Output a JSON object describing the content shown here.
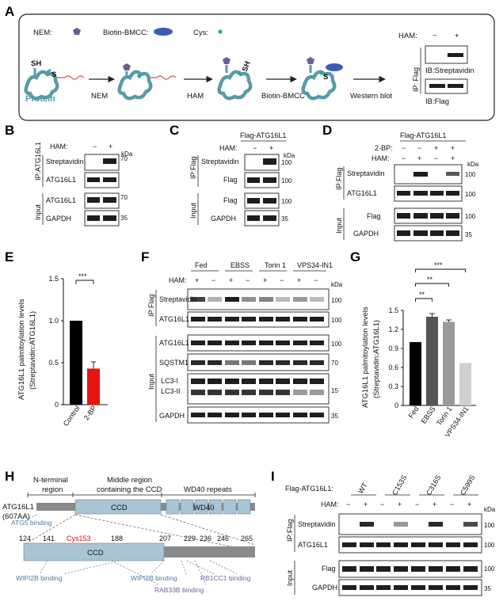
{
  "panels": {
    "A": "A",
    "B": "B",
    "C": "C",
    "D": "D",
    "E": "E",
    "F": "F",
    "G": "G",
    "H": "H",
    "I": "I"
  },
  "colors": {
    "protein": "#5a9aa6",
    "nem": "#6b5e96",
    "bmcc": "#3a5bb8",
    "cys": "#2aa89a",
    "bar_black": "#000000",
    "bar_red": "#e8140f",
    "g_bars": [
      "#000000",
      "#555555",
      "#9a9a9a",
      "#d0d0d0"
    ],
    "domain": "#a9c4d2",
    "cys153": "#d11010",
    "blue_text": "#4a7ca0",
    "purple_text": "#7060a0"
  },
  "a": {
    "legend_nem": "NEM:",
    "legend_bmcc": "Biotin-BMCC:",
    "legend_cys": "Cys:",
    "sh": "SH",
    "s": "S",
    "protein": "Protein",
    "sh2": "SH",
    "steps": [
      "NEM",
      "HAM",
      "Biotin-BMCC",
      "Western blot"
    ],
    "ham": "HAM:",
    "minus": "−",
    "plus": "+",
    "ip": "IP: Flag",
    "ib1": "IB:Streptavidin",
    "ib2": "IB:Flag"
  },
  "common": {
    "ham": "HAM:",
    "minus": "−",
    "plus": "+",
    "kda": "kDa",
    "streptavidin": "Streptavidin",
    "atg16l1": "ATG16L1",
    "flag": "Flag",
    "gapdh": "GAPDH",
    "input": "Input",
    "bp": "2-BP:",
    "ipflag": "IP:Flag",
    "ipatg": "IP:ATG16L1",
    "flag_atg": "Flag-ATG16L1"
  },
  "markers": {
    "m70": "70",
    "m35": "35",
    "m100": "100",
    "m15": "15"
  },
  "e": {
    "ylabel1": "ATG16L1 palmitoylation levels",
    "ylabel2": "(Streptavidin:ATG16L1)",
    "sig": "***",
    "chart_data": {
      "type": "bar",
      "categories": [
        "Control",
        "2-BP"
      ],
      "values": [
        1.0,
        0.43
      ],
      "errors": [
        0,
        0.08
      ],
      "ylim": [
        0,
        1.5
      ],
      "yticks": [
        "0",
        "0.5",
        "1.0",
        "1.5"
      ],
      "ylabel": "ATG16L1 palmitoylation levels (Streptavidin:ATG16L1)"
    }
  },
  "f": {
    "groups": [
      "Fed",
      "EBSS",
      "Torin 1",
      "VPS34-IN1"
    ],
    "sqstm1": "SQSTM1",
    "lc3i": "LC3-I",
    "lc3ii": "LC3-II"
  },
  "g": {
    "ylabel1": "ATG16L1 palmitoylation levels",
    "ylabel2": "(Streptavidin:ATG16L1)",
    "sig": [
      "**",
      "**",
      "***"
    ],
    "chart_data": {
      "type": "bar",
      "categories": [
        "Fed",
        "EBSS",
        "Torin 1",
        "VPS34-IN1"
      ],
      "values": [
        1.0,
        1.4,
        1.32,
        0.67
      ],
      "errors": [
        0,
        0.05,
        0.03,
        0
      ],
      "ylim": [
        0,
        1.5
      ],
      "yticks": [
        "0",
        "0.3",
        "0.6",
        "0.9",
        "1.2",
        "1.5"
      ],
      "ylabel": "ATG16L1 palmitoylation levels (Streptavidin:ATG16L1)"
    }
  },
  "h": {
    "nterm1": "N-terminal",
    "nterm2": "region",
    "mid1": "Middle region",
    "mid2": "containing the CCD",
    "wd40r": "WD40 repeats",
    "atg": "ATG16L1",
    "aa": "(607AA)",
    "ccd": "CCD",
    "wd40": "WD40",
    "atg5": "ATG5 binding",
    "positions": [
      "124",
      "141",
      "Cys153",
      "188",
      "207",
      "229",
      "236",
      "246",
      "265"
    ],
    "wipi1": "WIPI2B binding",
    "wipi2": "WIPI2B binding",
    "rb1cc1": "RB1CC1 binding",
    "rab33b": "RAB33B binding"
  },
  "i": {
    "flag_label": "Flag-ATG16L1:",
    "mutants": [
      "WT",
      "C153S",
      "C316S",
      "C599S"
    ]
  }
}
